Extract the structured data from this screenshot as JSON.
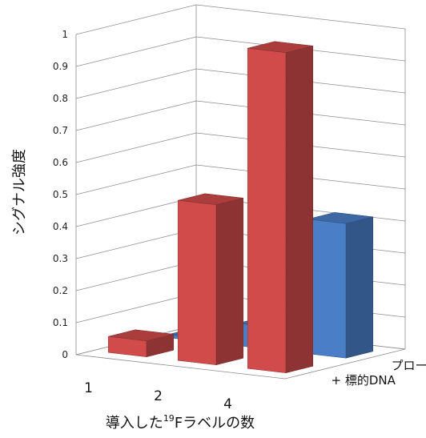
{
  "chart_data": {
    "type": "bar",
    "subtype": "3d-column",
    "categories": [
      "1",
      "2",
      "4"
    ],
    "series": [
      {
        "name": "+ 標的DNA",
        "values": [
          0.05,
          0.5,
          1.0
        ],
        "color": "#d14b4b"
      },
      {
        "name": "プローブのみ",
        "values": [
          0.01,
          0.07,
          0.42
        ],
        "color": "#4a7fc8"
      }
    ],
    "ylabel": "シグナル強度",
    "xlabel": {
      "prefix": "導入した",
      "superscript": "19",
      "suffix": "Fラベルの数"
    },
    "ylim": [
      0,
      1
    ],
    "yticks": [
      "0",
      "0.1",
      "0.2",
      "0.3",
      "0.4",
      "0.5",
      "0.6",
      "0.7",
      "0.8",
      "0.9",
      "1"
    ],
    "grid": true,
    "legend": "series labels on depth axis (right)"
  }
}
